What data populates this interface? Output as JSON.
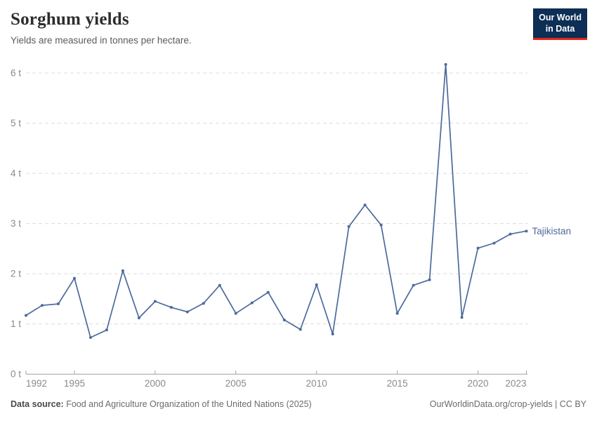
{
  "header": {
    "title": "Sorghum yields",
    "subtitle": "Yields are measured in tonnes per hectare."
  },
  "logo": {
    "line1": "Our World",
    "line2": "in Data",
    "bg_color": "#0d2e55",
    "accent_color": "#e5281c"
  },
  "footer": {
    "source_label": "Data source:",
    "source_text": " Food and Agriculture Organization of the United Nations (2025)",
    "credit": "OurWorldinData.org/crop-yields | CC BY"
  },
  "chart_data": {
    "type": "line",
    "title": "Sorghum yields",
    "subtitle": "Yields are measured in tonnes per hectare.",
    "xlabel": "",
    "ylabel": "tonnes per hectare",
    "x": [
      1992,
      1993,
      1994,
      1995,
      1996,
      1997,
      1998,
      1999,
      2000,
      2001,
      2002,
      2003,
      2004,
      2005,
      2006,
      2007,
      2008,
      2009,
      2010,
      2011,
      2012,
      2013,
      2014,
      2015,
      2016,
      2017,
      2018,
      2019,
      2020,
      2021,
      2022,
      2023
    ],
    "series": [
      {
        "name": "Tajikistan",
        "color": "#4c6a9c",
        "values": [
          1.17,
          1.37,
          1.4,
          1.91,
          0.73,
          0.88,
          2.06,
          1.12,
          1.45,
          1.33,
          1.24,
          1.41,
          1.77,
          1.21,
          1.42,
          1.63,
          1.08,
          0.89,
          1.78,
          0.8,
          2.94,
          3.37,
          2.97,
          1.21,
          1.77,
          1.88,
          6.17,
          1.13,
          2.51,
          2.61,
          2.79,
          2.85
        ]
      }
    ],
    "entity_label": "Tajikistan",
    "x_ticks": [
      1992,
      1995,
      2000,
      2005,
      2010,
      2015,
      2020,
      2023
    ],
    "y_ticks": [
      0,
      1,
      2,
      3,
      4,
      5,
      6
    ],
    "y_tick_suffix": " t",
    "xlim": [
      1992,
      2023
    ],
    "ylim": [
      0,
      6.3
    ],
    "grid": "horizontal-dashed",
    "legend_position": "end-of-line",
    "gridline_color": "#dcdcdc",
    "axis_color": "#a1a1a1",
    "tick_label_color": "#8a8a8a"
  }
}
